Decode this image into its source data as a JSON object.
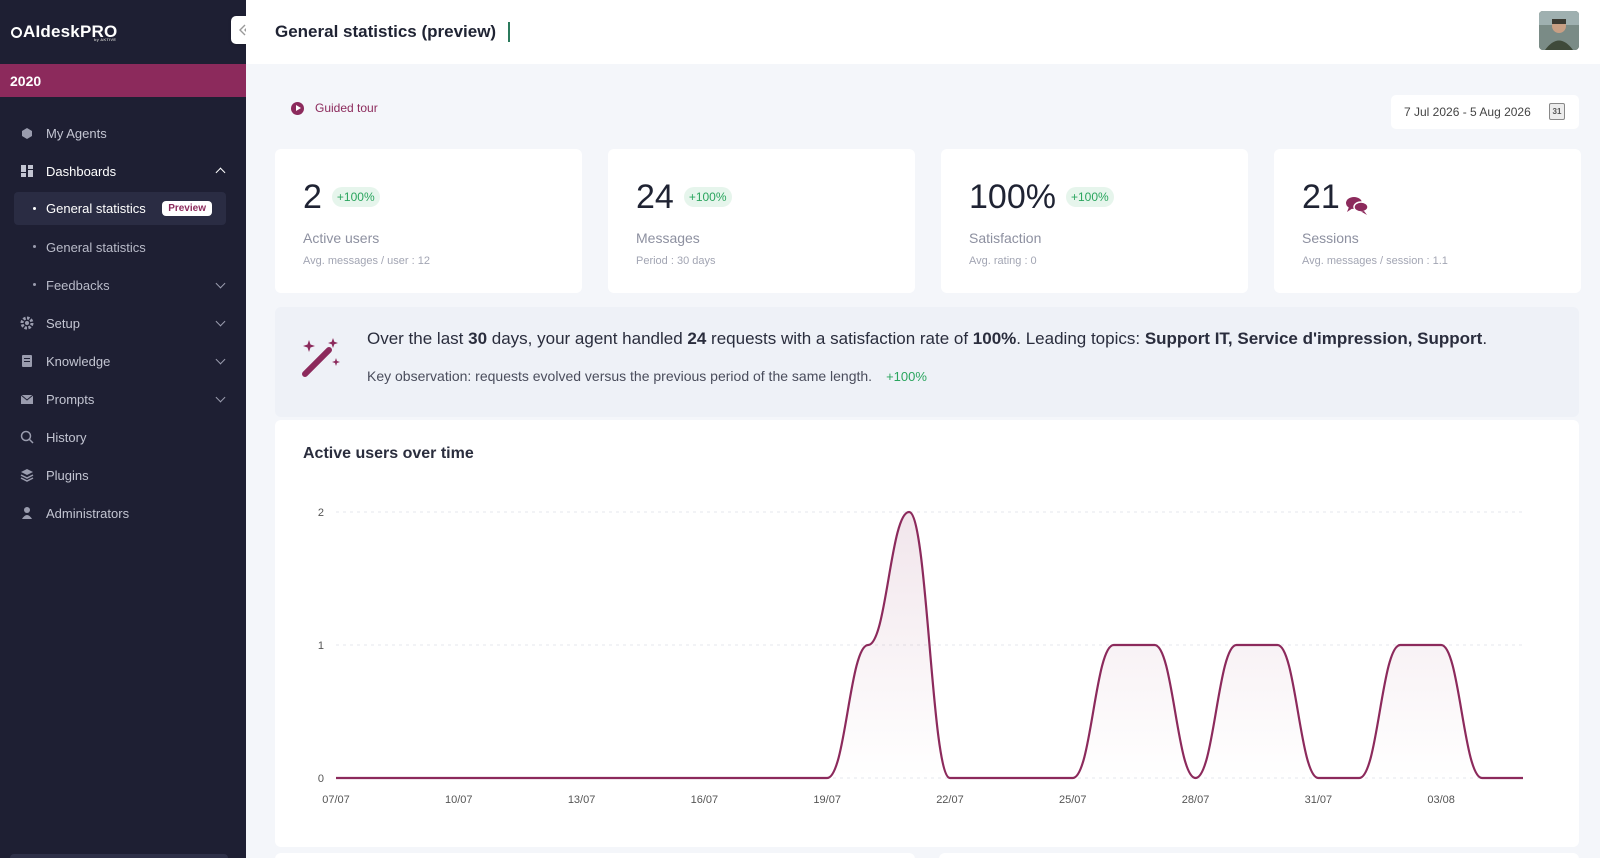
{
  "app": {
    "logo_text": "AIdeskPRO",
    "logo_sub": "by AKTIVE",
    "year": "2020"
  },
  "sidebar": {
    "items": [
      {
        "label": "My Agents",
        "icon": "agents-icon"
      },
      {
        "label": "Dashboards",
        "icon": "dashboard-icon",
        "expanded": true
      },
      {
        "label": "Setup",
        "icon": "gear-icon"
      },
      {
        "label": "Knowledge",
        "icon": "book-icon"
      },
      {
        "label": "Prompts",
        "icon": "mail-icon"
      },
      {
        "label": "History",
        "icon": "history-icon"
      },
      {
        "label": "Plugins",
        "icon": "layers-icon"
      },
      {
        "label": "Administrators",
        "icon": "user-icon"
      }
    ],
    "dashboard_sub": [
      {
        "label": "General statistics",
        "badge": "Preview",
        "active": true
      },
      {
        "label": "General statistics"
      },
      {
        "label": "Feedbacks"
      }
    ]
  },
  "header": {
    "title": "General statistics (preview)"
  },
  "guided_tour": "Guided tour",
  "date_range": "7 Jul 2026 - 5 Aug 2026",
  "calendar_day": "31",
  "cards": [
    {
      "value": "2",
      "pill": "+100%",
      "name": "Active users",
      "detail": "Avg. messages / user : 12"
    },
    {
      "value": "24",
      "pill": "+100%",
      "name": "Messages",
      "detail": "Period : 30 days"
    },
    {
      "value": "100%",
      "pill": "+100%",
      "name": "Satisfaction",
      "detail": "Avg. rating : 0"
    },
    {
      "value": "21",
      "pill": "",
      "name": "Sessions",
      "detail": "Avg. messages / session : 1.1"
    }
  ],
  "insight": {
    "p1": "Over the last ",
    "days": "30",
    "p2": " days, your agent handled ",
    "requests": "24",
    "p3": " requests with a satisfaction rate of ",
    "rate": "100%",
    "p4": ". Leading topics: ",
    "topics": "Support IT, Service d'impression, Support",
    "p5": ".",
    "observation": "Key observation: requests evolved versus the previous period of the same length.",
    "observation_pill": "+100%"
  },
  "colors": {
    "accent": "#8c2a5c",
    "sidebar": "#1e1f33",
    "positive": "#2aa55e"
  },
  "chart_data": {
    "type": "line",
    "title": "Active users over time",
    "x": [
      "07/07",
      "08/07",
      "09/07",
      "10/07",
      "11/07",
      "12/07",
      "13/07",
      "14/07",
      "15/07",
      "16/07",
      "17/07",
      "18/07",
      "19/07",
      "20/07",
      "21/07",
      "22/07",
      "23/07",
      "24/07",
      "25/07",
      "26/07",
      "27/07",
      "28/07",
      "29/07",
      "30/07",
      "31/07",
      "01/08",
      "02/08",
      "03/08",
      "04/08",
      "05/08"
    ],
    "x_tick_labels": [
      "07/07",
      "10/07",
      "13/07",
      "16/07",
      "19/07",
      "22/07",
      "25/07",
      "28/07",
      "31/07",
      "03/08"
    ],
    "series": [
      {
        "values": [
          0,
          0,
          0,
          0,
          0,
          0,
          0,
          0,
          0,
          0,
          0,
          0,
          0,
          1,
          2,
          0,
          0,
          0,
          0,
          1,
          1,
          0,
          1,
          1,
          0,
          0,
          1,
          1,
          0,
          0
        ]
      }
    ],
    "yticks": [
      0,
      1,
      2
    ],
    "ylim": [
      0,
      2
    ],
    "grid": true
  }
}
